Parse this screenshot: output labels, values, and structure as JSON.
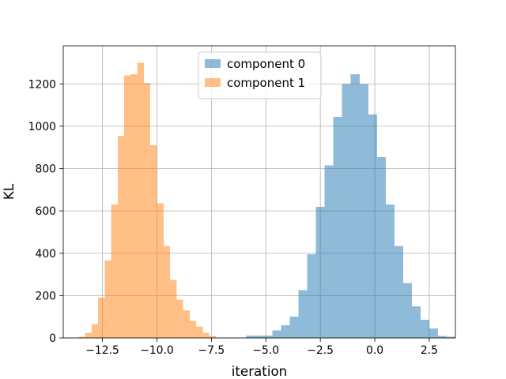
{
  "chart_data": {
    "type": "histogram",
    "xlabel": "iteration",
    "ylabel": "KL",
    "xlim": [
      -14.3,
      3.7
    ],
    "ylim": [
      0,
      1380
    ],
    "grid": true,
    "legend": {
      "placement": "top-center"
    },
    "x_ticks": [
      -12.5,
      -10.0,
      -7.5,
      -5.0,
      -2.5,
      0.0,
      2.5
    ],
    "x_tick_labels": [
      "−12.5",
      "−10.0",
      "−7.5",
      "−5.0",
      "−2.5",
      "0.0",
      "2.5"
    ],
    "y_ticks": [
      0,
      200,
      400,
      600,
      800,
      1000,
      1200
    ],
    "y_tick_labels": [
      "0",
      "200",
      "400",
      "600",
      "800",
      "1000",
      "1200"
    ],
    "series": [
      {
        "name": "component 0",
        "color": "#1f77b4",
        "alpha": 0.5,
        "bin_start": -5.9,
        "bin_width": 0.4,
        "counts": [
          12,
          12,
          12,
          35,
          60,
          100,
          225,
          395,
          620,
          815,
          1045,
          1200,
          1245,
          1200,
          1055,
          855,
          630,
          435,
          260,
          150,
          85,
          45,
          10,
          5
        ]
      },
      {
        "name": "component 1",
        "color": "#ff7f0e",
        "alpha": 0.5,
        "bin_start": -13.6,
        "bin_width": 0.3,
        "counts": [
          5,
          25,
          65,
          190,
          365,
          630,
          955,
          1240,
          1245,
          1300,
          1205,
          910,
          635,
          435,
          275,
          180,
          130,
          80,
          55,
          25,
          10
        ]
      }
    ]
  }
}
